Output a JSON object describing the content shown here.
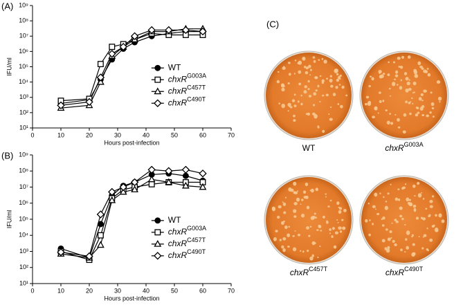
{
  "chart_data": [
    {
      "type": "line",
      "title": "(A)",
      "x_label": "Hours post-infection",
      "y_label": "IFU/ml",
      "x": [
        10,
        20,
        24,
        28,
        32,
        36,
        42,
        48,
        54,
        60
      ],
      "xlim": [
        0,
        70
      ],
      "xticks": [
        0,
        10,
        20,
        30,
        40,
        50,
        60,
        70
      ],
      "ylim": [
        10,
        1000000000
      ],
      "log_y": true,
      "yticks": [
        {
          "value": 10,
          "label": "10¹"
        },
        {
          "value": 100,
          "label": "10²"
        },
        {
          "value": 1000,
          "label": "10³"
        },
        {
          "value": 10000,
          "label": "10⁴"
        },
        {
          "value": 100000,
          "label": "10⁵"
        },
        {
          "value": 1000000,
          "label": "10⁶"
        },
        {
          "value": 10000000,
          "label": "10⁷"
        },
        {
          "value": 100000000,
          "label": "10⁸"
        },
        {
          "value": 1000000000,
          "label": "10⁹"
        }
      ],
      "legend": "right",
      "series": [
        {
          "name": "WT",
          "color": "#000000",
          "marker": "circle",
          "filled": true,
          "values": [
            400,
            700,
            15000,
            300000,
            1500000,
            4000000,
            10000000,
            15000000,
            20000000,
            20000000
          ]
        },
        {
          "name": "chxR",
          "allele": "G003A",
          "color": "#000000",
          "marker": "square",
          "filled": false,
          "values": [
            600,
            800,
            150000,
            2000000,
            3000000,
            6000000,
            15000000,
            12000000,
            12000000,
            12000000
          ]
        },
        {
          "name": "chxR",
          "allele": "C457T",
          "color": "#000000",
          "marker": "triangle",
          "filled": false,
          "values": [
            200,
            300,
            10000,
            500000,
            2000000,
            6000000,
            20000000,
            20000000,
            30000000,
            30000000
          ]
        },
        {
          "name": "chxR",
          "allele": "C490T",
          "color": "#000000",
          "marker": "diamond",
          "filled": false,
          "values": [
            300,
            500,
            20000,
            700000,
            2000000,
            10000000,
            25000000,
            25000000,
            25000000,
            20000000
          ]
        }
      ]
    },
    {
      "type": "line",
      "title": "(B)",
      "x_label": "Hours post-infection",
      "y_label": "IFU/ml",
      "x": [
        10,
        20,
        24,
        28,
        32,
        36,
        42,
        48,
        54,
        60
      ],
      "xlim": [
        0,
        70
      ],
      "xticks": [
        0,
        10,
        20,
        30,
        40,
        50,
        60,
        70
      ],
      "ylim": [
        10,
        1000000000
      ],
      "log_y": true,
      "yticks": [
        {
          "value": 10,
          "label": "10¹"
        },
        {
          "value": 100,
          "label": "10²"
        },
        {
          "value": 1000,
          "label": "10³"
        },
        {
          "value": 10000,
          "label": "10⁴"
        },
        {
          "value": 100000,
          "label": "10⁵"
        },
        {
          "value": 1000000,
          "label": "10⁶"
        },
        {
          "value": 10000000,
          "label": "10⁷"
        },
        {
          "value": 100000000,
          "label": "10⁸"
        },
        {
          "value": 1000000000,
          "label": "10⁹"
        }
      ],
      "legend": "right",
      "series": [
        {
          "name": "WT",
          "color": "#000000",
          "marker": "circle",
          "filled": true,
          "values": [
            1500,
            400,
            50000,
            3000000,
            12000000,
            20000000,
            60000000,
            70000000,
            50000000,
            25000000
          ]
        },
        {
          "name": "chxR",
          "allele": "G003A",
          "color": "#000000",
          "marker": "square",
          "filled": false,
          "values": [
            1000,
            300,
            10000,
            2000000,
            7000000,
            10000000,
            15000000,
            20000000,
            20000000,
            20000000
          ]
        },
        {
          "name": "chxR",
          "allele": "C457T",
          "color": "#000000",
          "marker": "triangle",
          "filled": false,
          "values": [
            700,
            400,
            2500,
            1500000,
            5000000,
            7000000,
            30000000,
            20000000,
            12000000,
            10000000
          ]
        },
        {
          "name": "chxR",
          "allele": "C490T",
          "color": "#000000",
          "marker": "diamond",
          "filled": false,
          "values": [
            900,
            500,
            200000,
            5000000,
            10000000,
            20000000,
            120000000,
            100000000,
            120000000,
            70000000
          ]
        }
      ]
    }
  ],
  "panel_c": {
    "label": "(C)",
    "plates": [
      {
        "name": "WT"
      },
      {
        "name": "chxR",
        "allele": "G003A"
      },
      {
        "name": "chxR",
        "allele": "C457T"
      },
      {
        "name": "chxR",
        "allele": "C490T"
      }
    ]
  }
}
